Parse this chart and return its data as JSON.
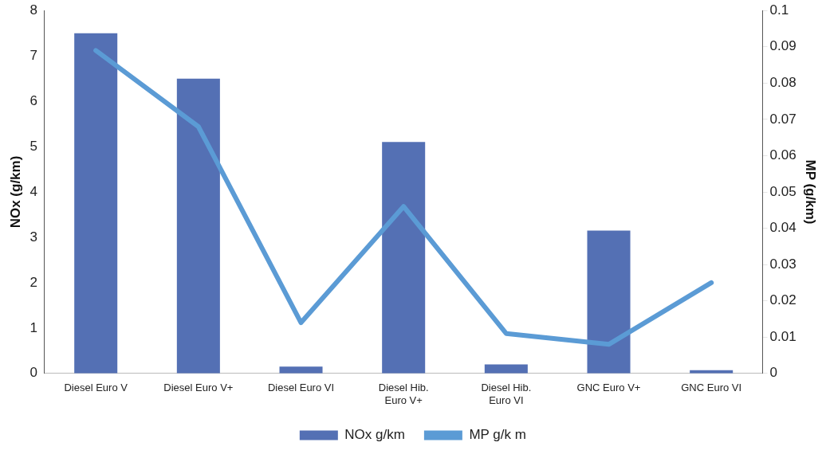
{
  "chart_data": {
    "type": "bar",
    "categories": [
      "Diesel Euro V",
      "Diesel Euro V+",
      "Diesel Euro VI",
      "Diesel Hib.\nEuro V+",
      "Diesel Hib.\nEuro VI",
      "GNC Euro V+",
      "GNC Euro VI"
    ],
    "series": [
      {
        "name": "NOx g/km",
        "color": "#5470b4",
        "values": [
          7.5,
          6.5,
          0.15,
          5.1,
          0.2,
          3.15,
          0.07
        ]
      },
      {
        "name": "MP g/k m",
        "type": "line",
        "axis": "y2",
        "color": "#5b9bd5",
        "values": [
          0.089,
          0.068,
          0.014,
          0.046,
          0.011,
          0.008,
          0.025
        ]
      }
    ],
    "ylabel": "NOx (g/km)",
    "y2label": "MP (g/km)",
    "ylim": [
      0,
      8
    ],
    "yticks": [
      0,
      1,
      2,
      3,
      4,
      5,
      6,
      7,
      8
    ],
    "y2lim": [
      0,
      0.1
    ],
    "y2ticks": [
      0,
      0.01,
      0.02,
      0.03,
      0.04,
      0.05,
      0.06,
      0.07,
      0.08,
      0.09,
      0.1
    ],
    "grid": false,
    "legend": "bottom",
    "marker": "none"
  }
}
